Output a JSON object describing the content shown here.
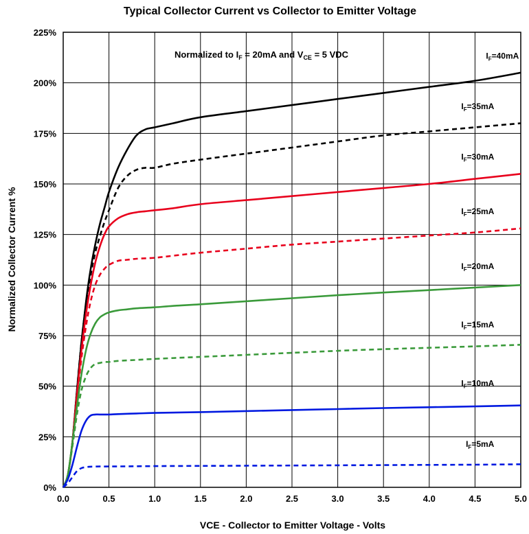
{
  "chart_data": {
    "type": "line",
    "title": "Typical Collector Current vs Collector to Emitter Voltage",
    "xlabel": "VCE - Collector to Emitter Voltage - Volts",
    "ylabel": "Normalized Collector Current %",
    "annotation": {
      "prefix": "Normalized to I",
      "sub1": "F",
      "middle": " = 20mA and V",
      "sub2": "CE",
      "suffix": " = 5 VDC"
    },
    "xlim": [
      0,
      5
    ],
    "ylim": [
      0,
      225
    ],
    "x_ticks": [
      "0.0",
      "0.5",
      "1.0",
      "1.5",
      "2.0",
      "2.5",
      "3.0",
      "3.5",
      "4.0",
      "4.5",
      "5.0"
    ],
    "y_ticks": [
      "0%",
      "25%",
      "50%",
      "75%",
      "100%",
      "125%",
      "150%",
      "175%",
      "200%",
      "225%"
    ],
    "grid": true,
    "series": [
      {
        "label_prefix": "I",
        "label_sub": "F",
        "label_suffix": "=40mA",
        "color": "#000000",
        "dashed": false,
        "label_x": 4.62,
        "label_y": 212,
        "x": [
          0,
          0.05,
          0.1,
          0.15,
          0.2,
          0.25,
          0.3,
          0.35,
          0.4,
          0.45,
          0.5,
          0.6,
          0.7,
          0.8,
          0.9,
          1.0,
          1.2,
          1.5,
          2.0,
          2.5,
          3.0,
          3.5,
          4.0,
          4.5,
          5.0
        ],
        "y": [
          0,
          6,
          22,
          48,
          72,
          92,
          108,
          120,
          130,
          138,
          146,
          158,
          167,
          174,
          177,
          178,
          180,
          183,
          186,
          189,
          192,
          195,
          198,
          201,
          205
        ]
      },
      {
        "label_prefix": "I",
        "label_sub": "F",
        "label_suffix": "=35mA",
        "color": "#000000",
        "dashed": true,
        "label_x": 4.35,
        "label_y": 187,
        "x": [
          0,
          0.05,
          0.1,
          0.15,
          0.2,
          0.25,
          0.3,
          0.35,
          0.4,
          0.45,
          0.5,
          0.6,
          0.7,
          0.8,
          0.9,
          1.0,
          1.2,
          1.5,
          2.0,
          2.5,
          3.0,
          3.5,
          4.0,
          4.5,
          5.0
        ],
        "y": [
          0,
          6,
          22,
          48,
          72,
          91,
          105,
          116,
          124,
          131,
          137,
          148,
          154,
          157,
          158,
          158,
          160,
          162,
          165,
          168,
          171,
          174,
          176,
          178,
          180
        ]
      },
      {
        "label_prefix": "I",
        "label_sub": "F",
        "label_suffix": "=30mA",
        "color": "#e8001c",
        "dashed": false,
        "label_x": 4.35,
        "label_y": 162,
        "x": [
          0,
          0.05,
          0.1,
          0.15,
          0.2,
          0.25,
          0.3,
          0.35,
          0.4,
          0.45,
          0.5,
          0.6,
          0.7,
          0.8,
          0.9,
          1.0,
          1.2,
          1.5,
          2.0,
          2.5,
          3.0,
          3.5,
          4.0,
          4.5,
          5.0
        ],
        "y": [
          0,
          6,
          22,
          46,
          68,
          86,
          100,
          111,
          119,
          125,
          129,
          133,
          135,
          136,
          136.5,
          137,
          138,
          140,
          142,
          144,
          146,
          148,
          150,
          152.5,
          155
        ]
      },
      {
        "label_prefix": "I",
        "label_sub": "F",
        "label_suffix": "=25mA",
        "color": "#e8001c",
        "dashed": true,
        "label_x": 4.35,
        "label_y": 135,
        "x": [
          0,
          0.05,
          0.1,
          0.15,
          0.2,
          0.25,
          0.3,
          0.35,
          0.4,
          0.45,
          0.5,
          0.6,
          0.7,
          0.8,
          1.0,
          1.2,
          1.5,
          2.0,
          2.5,
          3.0,
          3.5,
          4.0,
          4.5,
          5.0
        ],
        "y": [
          0,
          6,
          22,
          44,
          64,
          80,
          92,
          100,
          105,
          108,
          110,
          112,
          112.5,
          113,
          113.5,
          114.5,
          116,
          118,
          120,
          121.5,
          123,
          124.5,
          126,
          128
        ]
      },
      {
        "label_prefix": "I",
        "label_sub": "F",
        "label_suffix": "=20mA",
        "color": "#3a9a3a",
        "dashed": false,
        "label_x": 4.35,
        "label_y": 108,
        "x": [
          0,
          0.05,
          0.1,
          0.15,
          0.2,
          0.25,
          0.3,
          0.35,
          0.4,
          0.45,
          0.5,
          0.6,
          0.7,
          0.8,
          1.0,
          1.2,
          1.5,
          2.0,
          2.5,
          3.0,
          3.5,
          4.0,
          4.5,
          5.0
        ],
        "y": [
          0,
          6,
          22,
          40,
          56,
          68,
          76,
          81,
          84,
          85.5,
          86.5,
          87.5,
          88,
          88.5,
          89,
          89.7,
          90.5,
          92,
          93.5,
          95,
          96.3,
          97.5,
          98.8,
          100
        ]
      },
      {
        "label_prefix": "I",
        "label_sub": "F",
        "label_suffix": "=15mA",
        "color": "#3a9a3a",
        "dashed": true,
        "label_x": 4.35,
        "label_y": 79,
        "x": [
          0,
          0.05,
          0.1,
          0.15,
          0.2,
          0.25,
          0.3,
          0.35,
          0.4,
          0.45,
          0.5,
          0.6,
          0.8,
          1.0,
          1.5,
          2.0,
          2.5,
          3.0,
          3.5,
          4.0,
          4.5,
          5.0
        ],
        "y": [
          0,
          6,
          20,
          36,
          48,
          55,
          59,
          61,
          61.5,
          62,
          62,
          62.5,
          63,
          63.5,
          64.5,
          65.5,
          66.5,
          67.5,
          68.3,
          69,
          69.7,
          70.5
        ]
      },
      {
        "label_prefix": "I",
        "label_sub": "F",
        "label_suffix": "=10mA",
        "color": "#0019e0",
        "dashed": false,
        "label_x": 4.35,
        "label_y": 50,
        "x": [
          0,
          0.05,
          0.1,
          0.15,
          0.2,
          0.25,
          0.3,
          0.35,
          0.4,
          0.5,
          0.6,
          0.8,
          1.0,
          1.5,
          2.0,
          2.5,
          3.0,
          3.5,
          4.0,
          4.5,
          5.0
        ],
        "y": [
          0,
          4,
          11,
          20,
          28,
          33,
          35.5,
          36,
          36,
          36,
          36.2,
          36.5,
          36.8,
          37.2,
          37.7,
          38.2,
          38.7,
          39.2,
          39.6,
          40,
          40.5
        ]
      },
      {
        "label_prefix": "I",
        "label_sub": "F",
        "label_suffix": "=5mA",
        "color": "#0019e0",
        "dashed": true,
        "label_x": 4.4,
        "label_y": 20,
        "x": [
          0,
          0.05,
          0.1,
          0.15,
          0.2,
          0.25,
          0.3,
          0.4,
          0.5,
          1.0,
          1.5,
          2.0,
          2.5,
          3.0,
          3.5,
          4.0,
          4.5,
          5.0
        ],
        "y": [
          0,
          2,
          5,
          8,
          9.5,
          10,
          10.2,
          10.3,
          10.3,
          10.5,
          10.6,
          10.7,
          10.8,
          10.9,
          11,
          11.1,
          11.2,
          11.4
        ]
      }
    ]
  }
}
